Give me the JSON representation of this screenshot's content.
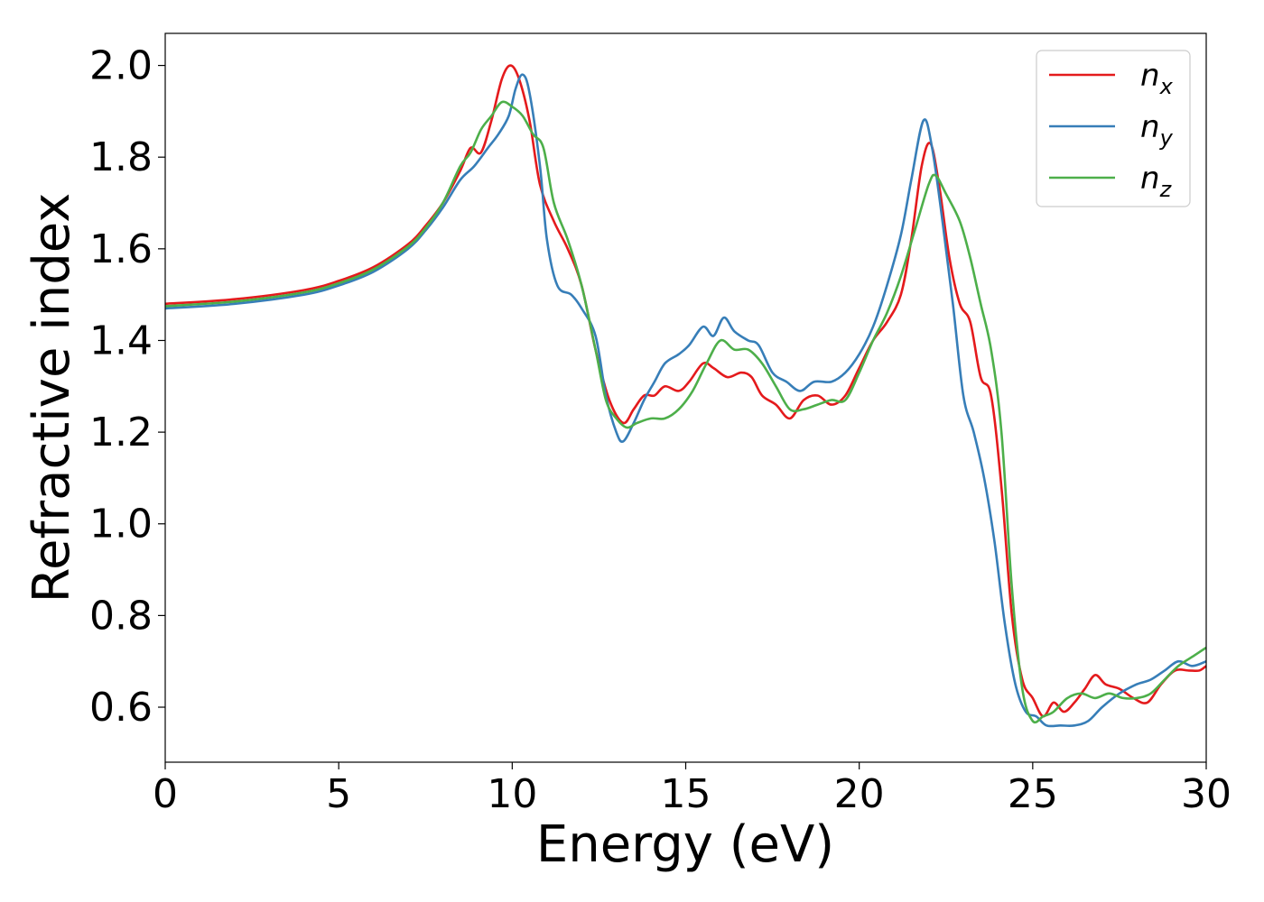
{
  "chart_data": {
    "type": "line",
    "xlabel": "Energy (eV)",
    "ylabel": "Refractive index",
    "xlim": [
      0,
      30
    ],
    "ylim": [
      0.48,
      2.07
    ],
    "xticks": [
      0,
      5,
      10,
      15,
      20,
      25,
      30
    ],
    "xtick_labels": [
      "0",
      "5",
      "10",
      "15",
      "20",
      "25",
      "30"
    ],
    "yticks": [
      0.6,
      0.8,
      1.0,
      1.2,
      1.4,
      1.6,
      1.8,
      2.0
    ],
    "ytick_labels": [
      "0.6",
      "0.8",
      "1.0",
      "1.2",
      "1.4",
      "1.6",
      "1.8",
      "2.0"
    ],
    "grid": false,
    "legend_position": "top-right",
    "series": [
      {
        "name": "n",
        "subscript": "x",
        "color": "#e41a1c",
        "points": [
          [
            0,
            1.48
          ],
          [
            2,
            1.49
          ],
          [
            4,
            1.51
          ],
          [
            5,
            1.53
          ],
          [
            6,
            1.56
          ],
          [
            7,
            1.61
          ],
          [
            7.5,
            1.65
          ],
          [
            8,
            1.7
          ],
          [
            8.5,
            1.77
          ],
          [
            8.8,
            1.82
          ],
          [
            9.1,
            1.81
          ],
          [
            9.4,
            1.88
          ],
          [
            9.7,
            1.97
          ],
          [
            9.95,
            2.0
          ],
          [
            10.2,
            1.97
          ],
          [
            10.5,
            1.88
          ],
          [
            10.8,
            1.74
          ],
          [
            11.2,
            1.66
          ],
          [
            11.6,
            1.6
          ],
          [
            12.0,
            1.52
          ],
          [
            12.4,
            1.38
          ],
          [
            12.8,
            1.27
          ],
          [
            13.2,
            1.22
          ],
          [
            13.5,
            1.25
          ],
          [
            13.8,
            1.28
          ],
          [
            14.1,
            1.28
          ],
          [
            14.4,
            1.3
          ],
          [
            14.8,
            1.29
          ],
          [
            15.1,
            1.31
          ],
          [
            15.5,
            1.35
          ],
          [
            15.8,
            1.34
          ],
          [
            16.2,
            1.32
          ],
          [
            16.6,
            1.33
          ],
          [
            16.9,
            1.32
          ],
          [
            17.2,
            1.28
          ],
          [
            17.6,
            1.26
          ],
          [
            18.0,
            1.23
          ],
          [
            18.4,
            1.27
          ],
          [
            18.8,
            1.28
          ],
          [
            19.2,
            1.26
          ],
          [
            19.6,
            1.28
          ],
          [
            20.0,
            1.34
          ],
          [
            20.4,
            1.4
          ],
          [
            20.8,
            1.44
          ],
          [
            21.2,
            1.5
          ],
          [
            21.5,
            1.62
          ],
          [
            21.8,
            1.78
          ],
          [
            22.05,
            1.83
          ],
          [
            22.3,
            1.74
          ],
          [
            22.6,
            1.58
          ],
          [
            22.9,
            1.48
          ],
          [
            23.2,
            1.44
          ],
          [
            23.5,
            1.32
          ],
          [
            23.8,
            1.28
          ],
          [
            24.1,
            1.08
          ],
          [
            24.4,
            0.8
          ],
          [
            24.7,
            0.66
          ],
          [
            25.0,
            0.62
          ],
          [
            25.3,
            0.58
          ],
          [
            25.6,
            0.61
          ],
          [
            25.9,
            0.59
          ],
          [
            26.2,
            0.61
          ],
          [
            26.5,
            0.64
          ],
          [
            26.8,
            0.67
          ],
          [
            27.1,
            0.65
          ],
          [
            27.5,
            0.64
          ],
          [
            27.9,
            0.62
          ],
          [
            28.3,
            0.61
          ],
          [
            28.7,
            0.65
          ],
          [
            29.1,
            0.68
          ],
          [
            29.5,
            0.68
          ],
          [
            29.8,
            0.68
          ],
          [
            30.0,
            0.69
          ]
        ]
      },
      {
        "name": "n",
        "subscript": "y",
        "color": "#377eb8",
        "points": [
          [
            0,
            1.47
          ],
          [
            2,
            1.48
          ],
          [
            4,
            1.5
          ],
          [
            5,
            1.52
          ],
          [
            6,
            1.55
          ],
          [
            7,
            1.6
          ],
          [
            7.5,
            1.64
          ],
          [
            8,
            1.69
          ],
          [
            8.5,
            1.75
          ],
          [
            8.9,
            1.78
          ],
          [
            9.3,
            1.82
          ],
          [
            9.6,
            1.85
          ],
          [
            9.9,
            1.89
          ],
          [
            10.1,
            1.95
          ],
          [
            10.3,
            1.98
          ],
          [
            10.5,
            1.94
          ],
          [
            10.8,
            1.78
          ],
          [
            11.0,
            1.62
          ],
          [
            11.3,
            1.52
          ],
          [
            11.7,
            1.5
          ],
          [
            12.0,
            1.47
          ],
          [
            12.4,
            1.41
          ],
          [
            12.7,
            1.28
          ],
          [
            13.0,
            1.2
          ],
          [
            13.2,
            1.18
          ],
          [
            13.5,
            1.22
          ],
          [
            13.8,
            1.27
          ],
          [
            14.1,
            1.31
          ],
          [
            14.4,
            1.35
          ],
          [
            14.8,
            1.37
          ],
          [
            15.1,
            1.39
          ],
          [
            15.5,
            1.43
          ],
          [
            15.8,
            1.41
          ],
          [
            16.1,
            1.45
          ],
          [
            16.4,
            1.42
          ],
          [
            16.8,
            1.4
          ],
          [
            17.1,
            1.39
          ],
          [
            17.5,
            1.33
          ],
          [
            17.9,
            1.31
          ],
          [
            18.3,
            1.29
          ],
          [
            18.7,
            1.31
          ],
          [
            19.2,
            1.31
          ],
          [
            19.6,
            1.33
          ],
          [
            20.0,
            1.37
          ],
          [
            20.4,
            1.43
          ],
          [
            20.8,
            1.52
          ],
          [
            21.2,
            1.63
          ],
          [
            21.5,
            1.75
          ],
          [
            21.85,
            1.88
          ],
          [
            22.1,
            1.82
          ],
          [
            22.4,
            1.66
          ],
          [
            22.7,
            1.48
          ],
          [
            23.0,
            1.28
          ],
          [
            23.3,
            1.2
          ],
          [
            23.6,
            1.1
          ],
          [
            23.9,
            0.96
          ],
          [
            24.2,
            0.78
          ],
          [
            24.5,
            0.65
          ],
          [
            24.8,
            0.59
          ],
          [
            25.1,
            0.58
          ],
          [
            25.4,
            0.56
          ],
          [
            25.8,
            0.56
          ],
          [
            26.2,
            0.56
          ],
          [
            26.6,
            0.57
          ],
          [
            27.0,
            0.6
          ],
          [
            27.5,
            0.63
          ],
          [
            28.0,
            0.65
          ],
          [
            28.4,
            0.66
          ],
          [
            28.8,
            0.68
          ],
          [
            29.2,
            0.7
          ],
          [
            29.6,
            0.69
          ],
          [
            30.0,
            0.7
          ]
        ]
      },
      {
        "name": "n",
        "subscript": "z",
        "color": "#4daf4a",
        "points": [
          [
            0,
            1.475
          ],
          [
            2,
            1.485
          ],
          [
            4,
            1.505
          ],
          [
            5,
            1.525
          ],
          [
            6,
            1.555
          ],
          [
            7,
            1.605
          ],
          [
            7.5,
            1.645
          ],
          [
            8,
            1.7
          ],
          [
            8.5,
            1.78
          ],
          [
            8.8,
            1.81
          ],
          [
            9.1,
            1.86
          ],
          [
            9.4,
            1.89
          ],
          [
            9.7,
            1.92
          ],
          [
            10.0,
            1.91
          ],
          [
            10.3,
            1.89
          ],
          [
            10.6,
            1.85
          ],
          [
            10.9,
            1.82
          ],
          [
            11.2,
            1.7
          ],
          [
            11.6,
            1.62
          ],
          [
            12.0,
            1.52
          ],
          [
            12.4,
            1.38
          ],
          [
            12.7,
            1.27
          ],
          [
            13.0,
            1.23
          ],
          [
            13.3,
            1.21
          ],
          [
            13.6,
            1.22
          ],
          [
            14.0,
            1.23
          ],
          [
            14.4,
            1.23
          ],
          [
            14.8,
            1.25
          ],
          [
            15.2,
            1.29
          ],
          [
            15.6,
            1.35
          ],
          [
            16.0,
            1.4
          ],
          [
            16.4,
            1.38
          ],
          [
            16.8,
            1.38
          ],
          [
            17.2,
            1.35
          ],
          [
            17.6,
            1.3
          ],
          [
            18.0,
            1.25
          ],
          [
            18.4,
            1.25
          ],
          [
            18.8,
            1.26
          ],
          [
            19.2,
            1.27
          ],
          [
            19.6,
            1.27
          ],
          [
            20.0,
            1.33
          ],
          [
            20.4,
            1.4
          ],
          [
            20.8,
            1.46
          ],
          [
            21.2,
            1.54
          ],
          [
            21.6,
            1.64
          ],
          [
            22.0,
            1.74
          ],
          [
            22.2,
            1.76
          ],
          [
            22.5,
            1.72
          ],
          [
            22.9,
            1.66
          ],
          [
            23.2,
            1.58
          ],
          [
            23.5,
            1.48
          ],
          [
            23.8,
            1.38
          ],
          [
            24.1,
            1.2
          ],
          [
            24.4,
            0.86
          ],
          [
            24.7,
            0.64
          ],
          [
            25.0,
            0.57
          ],
          [
            25.3,
            0.58
          ],
          [
            25.6,
            0.59
          ],
          [
            26.0,
            0.62
          ],
          [
            26.4,
            0.63
          ],
          [
            26.8,
            0.62
          ],
          [
            27.2,
            0.63
          ],
          [
            27.6,
            0.62
          ],
          [
            28.0,
            0.62
          ],
          [
            28.4,
            0.63
          ],
          [
            28.8,
            0.66
          ],
          [
            29.2,
            0.69
          ],
          [
            29.6,
            0.71
          ],
          [
            30.0,
            0.73
          ]
        ]
      }
    ]
  }
}
